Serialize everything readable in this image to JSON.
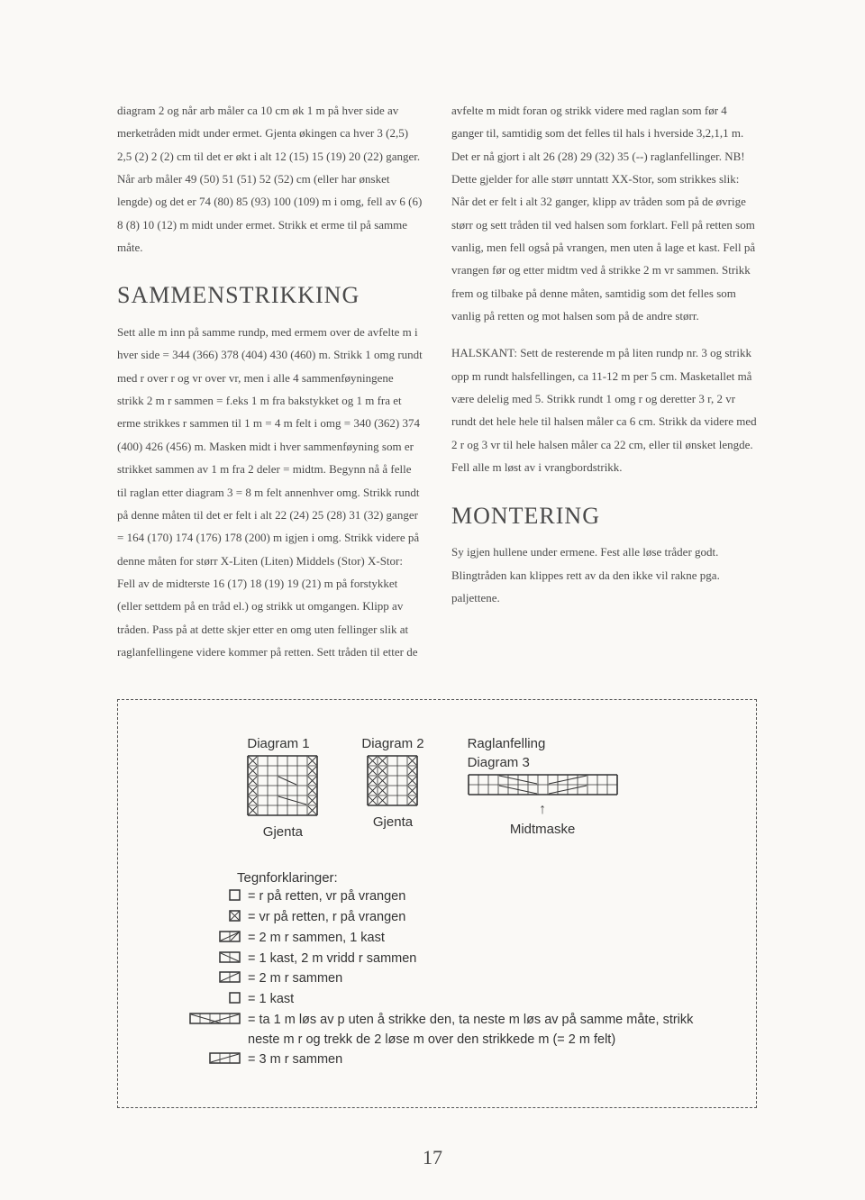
{
  "colors": {
    "background": "#faf9f6",
    "text": "#4a4a4a",
    "diagram_stroke": "#333333",
    "border": "#555555"
  },
  "left": {
    "p1": "diagram 2 og når arb måler ca 10 cm øk 1 m på hver side av merketråden midt under ermet. Gjenta økingen ca hver 3 (2,5) 2,5 (2) 2 (2) cm til det er økt i alt 12 (15) 15 (19) 20 (22) ganger. Når arb måler 49 (50) 51 (51) 52 (52) cm (eller har ønsket lengde) og det er 74 (80) 85 (93) 100 (109) m i omg, fell av 6 (6) 8 (8) 10 (12) m midt under ermet. Strikk et erme til på samme måte.",
    "h1": "SAMMENSTRIKKING",
    "p2": "Sett alle m inn på samme rundp, med ermem over de avfelte m i hver side = 344 (366) 378 (404) 430 (460) m. Strikk 1 omg rundt med r over r og vr over vr, men i alle 4 sammenføyningene strikk 2 m r sammen = f.eks 1 m fra bakstykket og 1 m fra et erme strikkes r sammen til 1 m = 4 m felt i omg = 340 (362) 374 (400) 426 (456) m. Masken midt i hver sammenføyning som er strikket sammen av 1 m fra 2 deler = midtm. Begynn nå å felle til raglan etter diagram 3 = 8 m felt annenhver omg. Strikk rundt på denne måten til det er felt i alt 22 (24) 25 (28) 31 (32) ganger = 164 (170) 174 (176) 178 (200) m igjen i omg. Strikk videre på denne måten for størr X-Liten (Liten) Middels (Stor) X-Stor: Fell av de midterste 16 (17) 18 (19) 19 (21) m på forstykket (eller settdem på en tråd el.) og strikk ut omgangen. Klipp av tråden. Pass på at dette skjer etter en omg uten fellinger slik at raglanfellingene videre kommer på retten. Sett tråden til etter de"
  },
  "right": {
    "p1": "avfelte m midt foran og strikk videre med raglan som før 4 ganger til, samtidig som det felles til hals i hverside 3,2,1,1 m. Det er nå gjort i alt 26 (28) 29 (32) 35 (--) raglanfellinger. NB! Dette gjelder for alle størr unntatt XX-Stor, som strikkes slik: Når det er felt i alt 32 ganger, klipp av tråden som på de øvrige størr og sett tråden til ved halsen som forklart. Fell på retten som vanlig, men fell også på vrangen, men uten å lage et kast. Fell på vrangen før og etter midtm ved å strikke 2 m vr sammen. Strikk frem og tilbake på denne måten, samtidig som det felles som vanlig på retten og mot halsen som på de andre størr.",
    "p2": "HALSKANT: Sett de resterende m på liten rundp nr. 3 og strikk opp m rundt halsfellingen, ca 11-12 m per 5 cm. Masketallet må være delelig med 5. Strikk rundt 1 omg r og deretter 3 r, 2 vr rundt det hele hele til halsen måler ca 6 cm. Strikk da videre med 2 r og 3 vr til hele halsen måler ca 22 cm, eller til ønsket lengde. Fell alle m løst av i vrangbordstrikk.",
    "h2": "MONTERING",
    "p3": "Sy igjen hullene under ermene. Fest alle løse tråder godt. Blingtråden kan klippes rett av da den ikke vil rakne pga. paljettene."
  },
  "diagrams": {
    "d1": {
      "title": "Diagram 1",
      "caption": "Gjenta",
      "cols": 7,
      "rows": 6,
      "cell": 11
    },
    "d2": {
      "title": "Diagram 2",
      "caption": "Gjenta",
      "cols": 5,
      "rows": 5,
      "cell": 11
    },
    "d3": {
      "title": "Raglanfelling",
      "subtitle": "Diagram 3",
      "caption": "Midtmaske",
      "cols": 15,
      "rows": 2,
      "cell": 11
    }
  },
  "legend": {
    "title": "Tegnforklaringer:",
    "items": [
      {
        "sym": "empty1",
        "txt": "= r på retten, vr på vrangen"
      },
      {
        "sym": "xbox1",
        "txt": "= vr på retten, r på vrangen"
      },
      {
        "sym": "slash2",
        "txt": "= 2 m r sammen, 1 kast"
      },
      {
        "sym": "bslash2",
        "txt": "= 1 kast, 2 m vridd r sammen"
      },
      {
        "sym": "slash2b",
        "txt": "= 2 m r sammen"
      },
      {
        "sym": "circle1",
        "txt": "= 1 kast"
      },
      {
        "sym": "slash3long",
        "txt": "= ta 1 m løs av p uten å strikke den, ta neste m løs av på samme måte, strikk neste m r og trekk de 2 løse m over den strikkede m (= 2 m felt)"
      },
      {
        "sym": "slash3",
        "txt": "= 3 m r sammen"
      }
    ]
  },
  "page_number": "17"
}
